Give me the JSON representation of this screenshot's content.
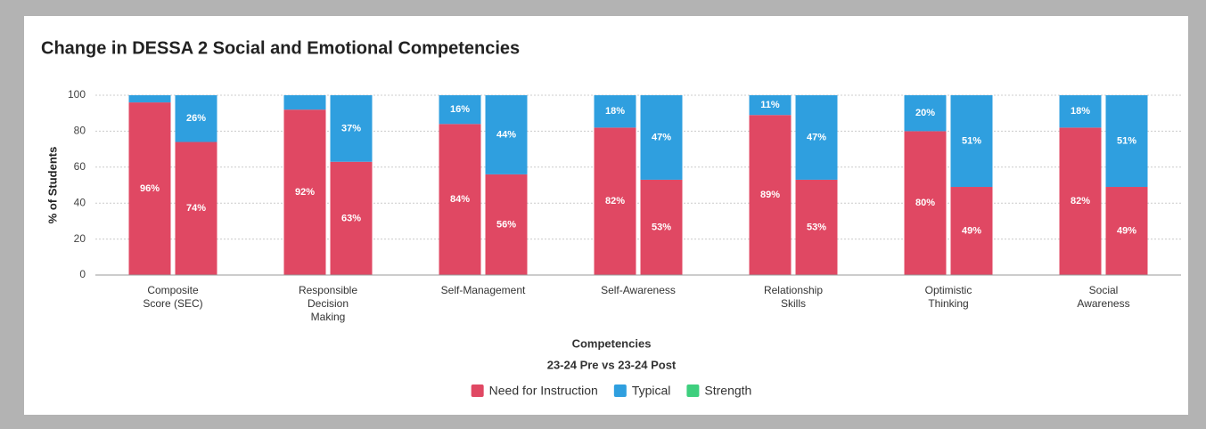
{
  "chart_data": {
    "type": "grouped_stacked_bar",
    "title": "Change in DESSA 2 Social and Emotional Competencies",
    "x_label": "Competencies",
    "subtitle": "23-24 Pre vs 23-24 Post",
    "y_label": "% of Students",
    "categories": [
      [
        "Composite",
        "Score (SEC)"
      ],
      [
        "Responsible",
        "Decision",
        "Making"
      ],
      [
        "Self-Management"
      ],
      [
        "Self-Awareness"
      ],
      [
        "Relationship",
        "Skills"
      ],
      [
        "Optimistic",
        "Thinking"
      ],
      [
        "Social",
        "Awareness"
      ]
    ],
    "series": [
      {
        "name": "Need for Instruction",
        "color": "#e04863",
        "values": [
          [
            96,
            74
          ],
          [
            92,
            63
          ],
          [
            84,
            56
          ],
          [
            82,
            53
          ],
          [
            89,
            53
          ],
          [
            80,
            49
          ],
          [
            82,
            49
          ]
        ],
        "value_labels": [
          [
            "96%",
            "74%"
          ],
          [
            "92%",
            "63%"
          ],
          [
            "84%",
            "56%"
          ],
          [
            "82%",
            "53%"
          ],
          [
            "89%",
            "53%"
          ],
          [
            "80%",
            "49%"
          ],
          [
            "82%",
            "49%"
          ]
        ]
      },
      {
        "name": "Typical",
        "color": "#2f9fdf",
        "values": [
          [
            4,
            26
          ],
          [
            8,
            37
          ],
          [
            16,
            44
          ],
          [
            18,
            47
          ],
          [
            11,
            47
          ],
          [
            20,
            51
          ],
          [
            18,
            51
          ]
        ],
        "value_labels": [
          [
            null,
            "26%"
          ],
          [
            null,
            "37%"
          ],
          [
            "16%",
            "44%"
          ],
          [
            "18%",
            "47%"
          ],
          [
            "11%",
            "47%"
          ],
          [
            "20%",
            "51%"
          ],
          [
            "18%",
            "51%"
          ]
        ]
      },
      {
        "name": "Strength",
        "color": "#3ecf7e",
        "values": [
          [
            0,
            0
          ],
          [
            0,
            0
          ],
          [
            0,
            0
          ],
          [
            0,
            0
          ],
          [
            0,
            0
          ],
          [
            0,
            0
          ],
          [
            0,
            0
          ]
        ]
      }
    ],
    "ylim": [
      0,
      100
    ],
    "yticks": [
      0,
      20,
      40,
      60,
      80,
      100
    ],
    "grid": true
  }
}
